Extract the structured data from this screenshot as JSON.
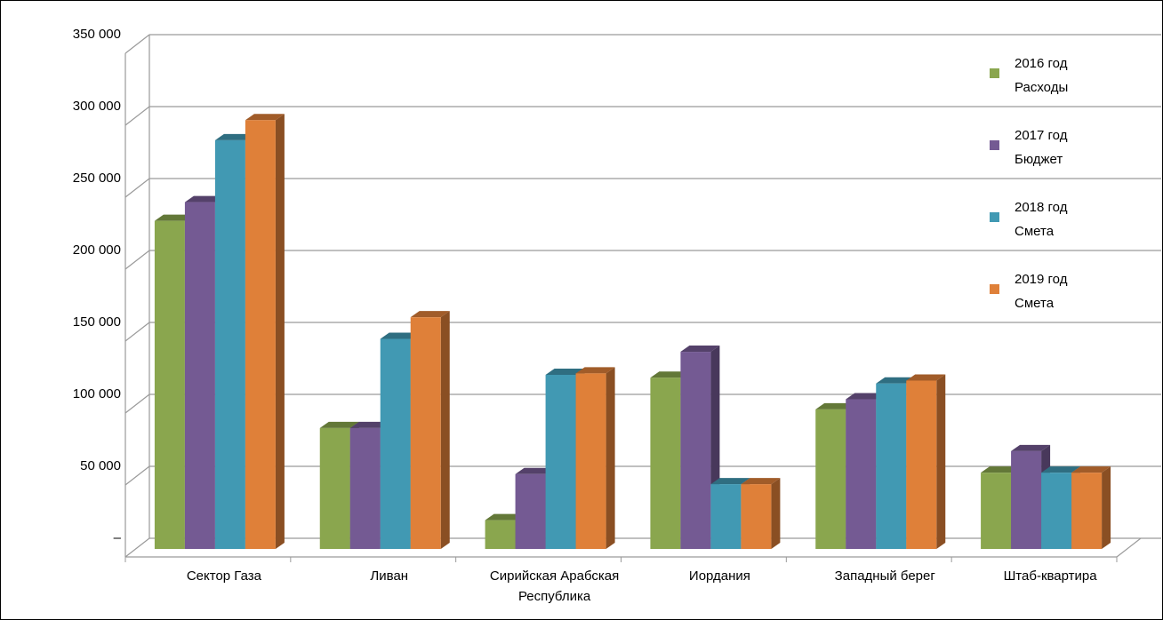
{
  "chart_data": {
    "type": "bar",
    "categories": [
      "Сектор Газа",
      "Ливан",
      "Сирийская Арабская Республика",
      "Иордания",
      "Западный берег",
      "Штаб-квартира"
    ],
    "category_lines": [
      [
        "Сектор Газа"
      ],
      [
        "Ливан"
      ],
      [
        "Сирийская Арабская",
        "Республика"
      ],
      [
        "Иордания"
      ],
      [
        "Западный берег"
      ],
      [
        "Штаб-квартира"
      ]
    ],
    "series": [
      {
        "name": "2016 год Расходы",
        "name_lines": [
          "2016 год",
          "Расходы"
        ],
        "color": "#8aa64e",
        "values": [
          228000,
          84000,
          20000,
          119000,
          97000,
          53000
        ]
      },
      {
        "name": "2017 год Бюджет",
        "name_lines": [
          "2017 год",
          "Бюджет"
        ],
        "color": "#745a93",
        "values": [
          241000,
          84000,
          52000,
          137000,
          104000,
          68000
        ]
      },
      {
        "name": "2018 год Смета",
        "name_lines": [
          "2018 год",
          "Смета"
        ],
        "color": "#4199b3",
        "values": [
          284000,
          146000,
          121000,
          45000,
          115000,
          53000
        ]
      },
      {
        "name": "2019 год Смета",
        "name_lines": [
          "2019 год",
          "Смета"
        ],
        "color": "#df8039",
        "values": [
          298000,
          161000,
          122000,
          45000,
          117000,
          53000
        ]
      }
    ],
    "yticks": [
      "350 000",
      "300 000",
      "250 000",
      "200 000",
      "150 000",
      "100 000",
      "50 000",
      "–"
    ],
    "ylim": [
      0,
      350000
    ],
    "grid": true,
    "legend": "right",
    "title": "",
    "xlabel": "",
    "ylabel": ""
  }
}
